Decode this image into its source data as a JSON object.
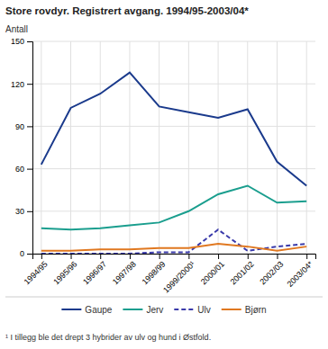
{
  "chart_data": {
    "type": "line",
    "title": "Store rovdyr. Registrert avgang. 1994/95-2003/04*",
    "ylabel": "Antall",
    "footnote": "¹ I tillegg ble det drept 3 hybrider av ulv og hund i Østfold.",
    "categories": [
      "1994/95",
      "1995/96",
      "1996/97",
      "1997/98",
      "1998/99",
      "1999/2000¹",
      "2000/01",
      "2001/02",
      "2002/03",
      "2003/04*"
    ],
    "series": [
      {
        "name": "Gaupe",
        "color": "#1a3a8c",
        "line_style": "solid",
        "values": [
          63,
          103,
          113,
          128,
          104,
          100,
          96,
          102,
          65,
          48
        ]
      },
      {
        "name": "Jerv",
        "color": "#1a9e8e",
        "line_style": "solid",
        "values": [
          18,
          17,
          18,
          20,
          22,
          30,
          42,
          48,
          36,
          37
        ]
      },
      {
        "name": "Ulv",
        "color": "#3a3aaa",
        "line_style": "dashed",
        "values": [
          0,
          0,
          0,
          0,
          1,
          1,
          17,
          2,
          5,
          7
        ]
      },
      {
        "name": "Bjørn",
        "color": "#e07820",
        "line_style": "solid",
        "values": [
          2,
          2,
          3,
          3,
          4,
          4,
          7,
          5,
          2,
          5
        ]
      }
    ],
    "ylim": [
      0,
      150
    ],
    "yticks": [
      0,
      30,
      60,
      90,
      120,
      150
    ],
    "grid": true,
    "legend": "bottom"
  }
}
